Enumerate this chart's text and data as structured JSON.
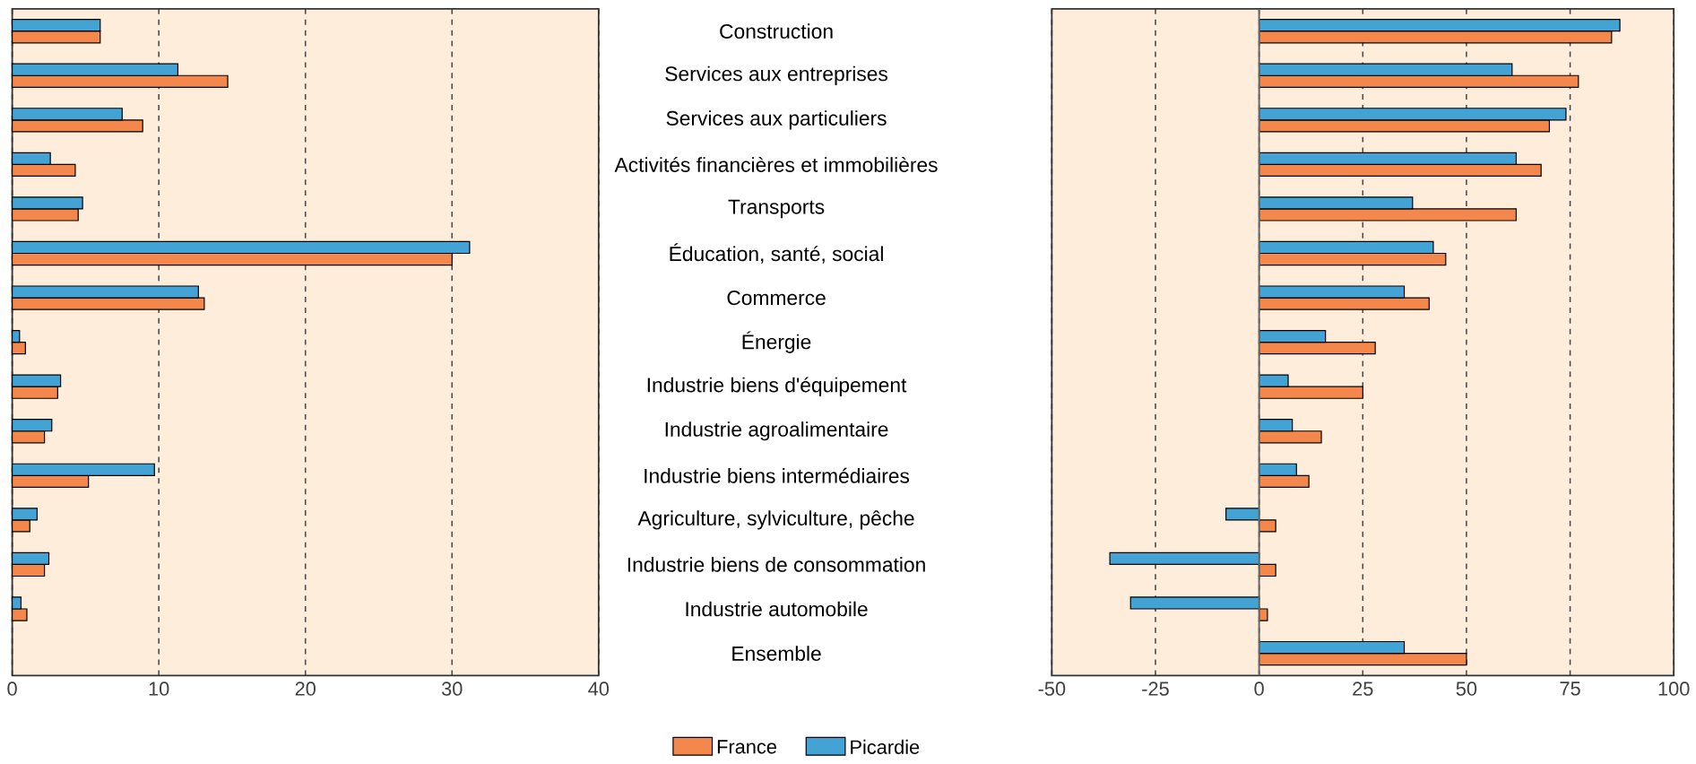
{
  "chart_data": [
    {
      "type": "bar",
      "orientation": "horizontal",
      "categories": [
        null,
        null,
        null,
        null,
        null,
        null,
        null,
        null,
        null,
        null,
        null,
        null,
        null,
        null,
        null
      ],
      "series": [
        {
          "name": "Picardie",
          "color": "#43a3d5",
          "values": [
            6.0,
            11.3,
            7.5,
            2.6,
            4.8,
            31.2,
            12.7,
            0.5,
            3.3,
            2.7,
            9.7,
            1.7,
            2.5,
            0.6,
            null
          ]
        },
        {
          "name": "France",
          "color": "#f4874b",
          "values": [
            6.0,
            14.7,
            8.9,
            4.3,
            4.5,
            30.0,
            13.1,
            0.9,
            3.1,
            2.2,
            5.2,
            1.2,
            2.2,
            1.0,
            null
          ]
        }
      ],
      "xlim": [
        0,
        40
      ],
      "xticks": [
        0,
        10,
        20,
        30,
        40
      ],
      "grid": "x",
      "tick_labels": "x",
      "legend": "bottom"
    },
    {
      "type": "bar",
      "orientation": "horizontal",
      "categories": [
        "Construction",
        "Services aux entreprises",
        "Services aux particuliers",
        "Activités financières et immobilières",
        "Transports",
        "Éducation, santé, social",
        "Commerce",
        "Énergie",
        "Industrie biens d'équipement",
        "Industrie agroalimentaire",
        "Industrie  biens intermédiaires",
        "Agriculture, sylviculture, pêche",
        "Industrie biens de consommation",
        "Industrie automobile",
        "Ensemble"
      ],
      "series": [
        {
          "color": "#43a3d5",
          "values": [
            87,
            61,
            74,
            62,
            37,
            42,
            35,
            16,
            7,
            8,
            9,
            -8,
            -36,
            -31,
            35
          ]
        },
        {
          "color": "#f4874b",
          "values": [
            85,
            77,
            70,
            68,
            62,
            45,
            41,
            28,
            25,
            15,
            12,
            4,
            4,
            2,
            50
          ]
        }
      ],
      "xlim": [
        -50,
        100
      ],
      "xticks": [
        -50,
        -25,
        0,
        25,
        50,
        75,
        100
      ],
      "grid": "x"
    }
  ]
}
